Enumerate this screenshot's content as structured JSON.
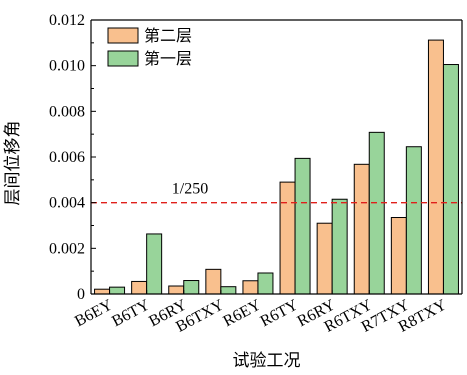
{
  "chart_data": {
    "type": "bar",
    "title": "",
    "xlabel": "试验工况",
    "ylabel": "层间位移角",
    "categories": [
      "B6EY",
      "B6TY",
      "B6RY",
      "B6TXY",
      "R6EY",
      "R6TY",
      "R6RY",
      "R6TXY",
      "R7TXY",
      "R8TXY"
    ],
    "series": [
      {
        "name": "第二层",
        "color": "#F9C08E",
        "values": [
          0.00021,
          0.00055,
          0.00035,
          0.00108,
          0.00058,
          0.0049,
          0.0031,
          0.00568,
          0.00335,
          0.01112
        ]
      },
      {
        "name": "第一层",
        "color": "#98D49A",
        "values": [
          0.0003,
          0.00263,
          0.00059,
          0.00032,
          0.00092,
          0.00594,
          0.00415,
          0.00708,
          0.00645,
          0.01005
        ]
      }
    ],
    "ylim": [
      0,
      0.012
    ],
    "yticks": [
      "0",
      "0.002",
      "0.004",
      "0.006",
      "0.008",
      "0.010",
      "0.012"
    ],
    "grid": false,
    "legend": "top-left",
    "reference_line": {
      "value": 0.004,
      "label": "1/250",
      "color": "#E0201B",
      "style": "dashed"
    }
  }
}
